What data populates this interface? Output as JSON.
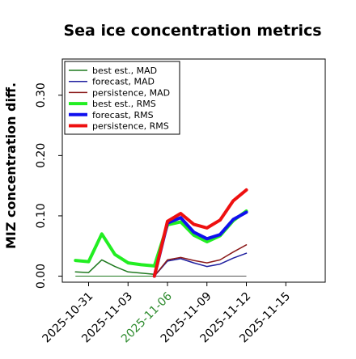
{
  "chart_data": {
    "type": "line",
    "title": "Sea ice concentration metrics",
    "xlabel": "",
    "ylabel": "MIZ concentration diff.",
    "ylim": [
      -0.01,
      0.36
    ],
    "xlim": [
      "2025-10-29",
      "2025-11-18"
    ],
    "grid": false,
    "legend_position": "top-left",
    "x_ticks": [
      "2025-10-31",
      "2025-11-03",
      "2025-11-06",
      "2025-11-09",
      "2025-11-12",
      "2025-11-15"
    ],
    "highlight_tick": "2025-11-06",
    "highlight_color": "#2e8b2e",
    "y_ticks": [
      0.0,
      0.1,
      0.2,
      0.3
    ],
    "y_tick_labels": [
      "0.00",
      "0.10",
      "0.20",
      "0.30"
    ],
    "series": [
      {
        "name": "best est., MAD",
        "color": "#1f7a1f",
        "width": 1.5,
        "x": [
          "2025-10-30",
          "2025-10-31",
          "2025-11-01",
          "2025-11-02",
          "2025-11-03",
          "2025-11-04",
          "2025-11-05"
        ],
        "y": [
          0.007,
          0.006,
          0.027,
          0.016,
          0.007,
          0.005,
          0.003
        ]
      },
      {
        "name": "forecast, MAD",
        "color": "#1f1f9f",
        "width": 1.5,
        "x": [
          "2025-11-05",
          "2025-11-06",
          "2025-11-07",
          "2025-11-08",
          "2025-11-09",
          "2025-11-10",
          "2025-11-11",
          "2025-11-12"
        ],
        "y": [
          0.0,
          0.025,
          0.029,
          0.022,
          0.016,
          0.02,
          0.03,
          0.038
        ]
      },
      {
        "name": "persistence, MAD",
        "color": "#8b1a1a",
        "width": 1.5,
        "x": [
          "2025-11-05",
          "2025-11-06",
          "2025-11-07",
          "2025-11-08",
          "2025-11-09",
          "2025-11-10",
          "2025-11-11",
          "2025-11-12"
        ],
        "y": [
          0.0,
          0.027,
          0.031,
          0.026,
          0.022,
          0.027,
          0.04,
          0.052
        ]
      },
      {
        "name": "best est., RMS",
        "color": "#22ee22",
        "width": 4,
        "x": [
          "2025-10-30",
          "2025-10-31",
          "2025-11-01",
          "2025-11-02",
          "2025-11-03",
          "2025-11-04",
          "2025-11-05",
          "2025-11-06",
          "2025-11-07",
          "2025-11-08",
          "2025-11-09",
          "2025-11-10",
          "2025-11-11",
          "2025-11-12"
        ],
        "y": [
          0.026,
          0.024,
          0.07,
          0.036,
          0.022,
          0.019,
          0.017,
          0.085,
          0.09,
          0.068,
          0.057,
          0.067,
          0.092,
          0.108
        ]
      },
      {
        "name": "forecast, RMS",
        "color": "#1010ee",
        "width": 4,
        "x": [
          "2025-11-05",
          "2025-11-06",
          "2025-11-07",
          "2025-11-08",
          "2025-11-09",
          "2025-11-10",
          "2025-11-11",
          "2025-11-12"
        ],
        "y": [
          0.0,
          0.088,
          0.097,
          0.073,
          0.062,
          0.069,
          0.094,
          0.106
        ]
      },
      {
        "name": "persistence, RMS",
        "color": "#ee1010",
        "width": 4,
        "x": [
          "2025-11-05",
          "2025-11-06",
          "2025-11-07",
          "2025-11-08",
          "2025-11-09",
          "2025-11-10",
          "2025-11-11",
          "2025-11-12"
        ],
        "y": [
          0.0,
          0.091,
          0.104,
          0.086,
          0.08,
          0.093,
          0.125,
          0.143
        ]
      }
    ],
    "hlines": [
      {
        "x": [
          "2025-10-30",
          "2025-11-05"
        ],
        "y": 0.0,
        "color": "#1f7a1f"
      },
      {
        "x": [
          "2025-11-05",
          "2025-11-12"
        ],
        "y": 0.0,
        "color": "#555555"
      }
    ]
  }
}
